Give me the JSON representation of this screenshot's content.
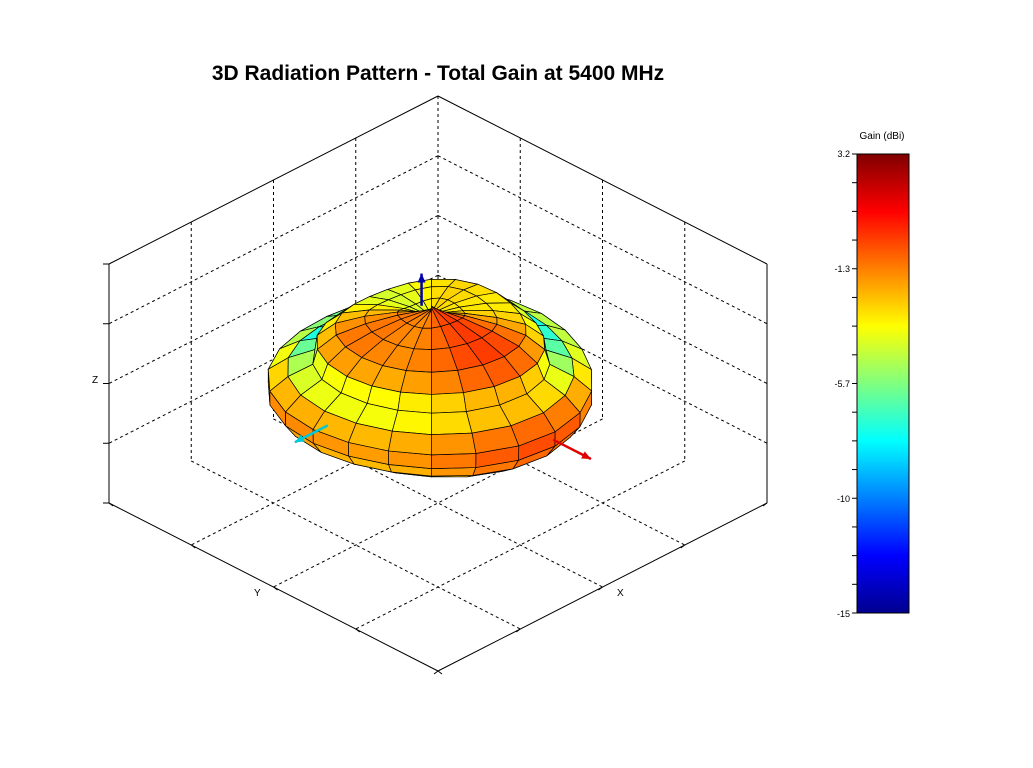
{
  "chart_data": {
    "type": "surface",
    "title": "3D Radiation Pattern - Total Gain at 5400 MHz",
    "xlabel": "X",
    "ylabel": "Y",
    "zlabel": "Z",
    "colorbar": {
      "title": "Gain (dBi)",
      "range": [
        -15,
        3.2
      ],
      "ticks": [
        "3.2",
        "-1.3",
        "-5.7",
        "-10",
        "-15"
      ],
      "tick_values": [
        3.2,
        -1.3,
        -5.7,
        -10,
        -15
      ],
      "colormap": "jet"
    },
    "grid": true,
    "axis_arrows": {
      "x": "#e00000",
      "y": "#00c8d8",
      "z": "#0000b0"
    }
  }
}
